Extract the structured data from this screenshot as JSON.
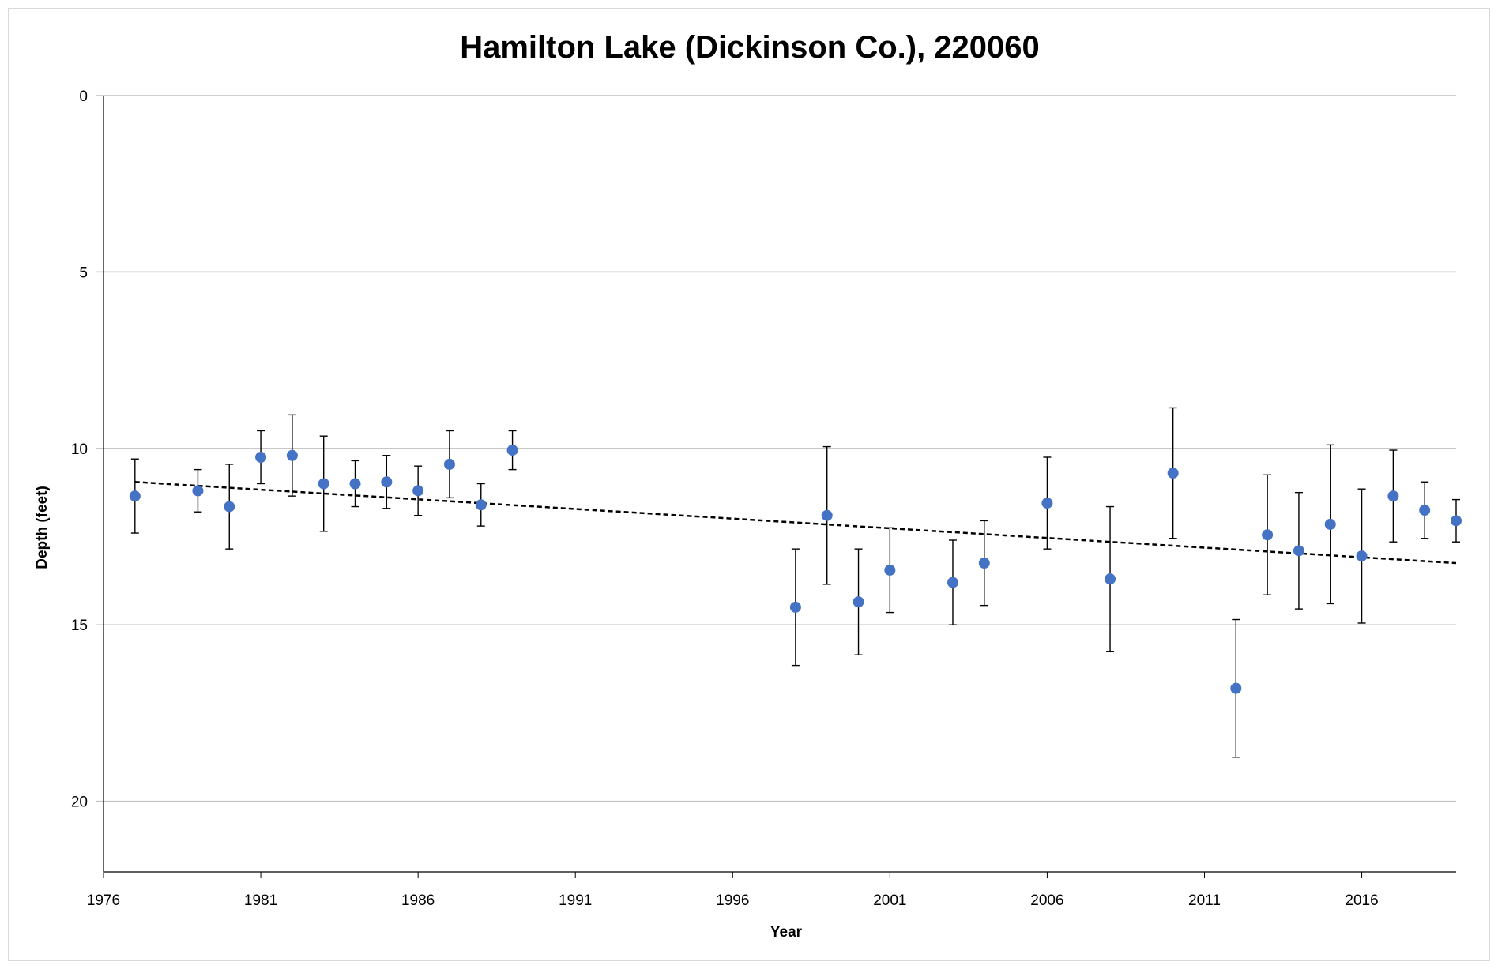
{
  "chart_data": {
    "type": "scatter",
    "title": "Hamilton Lake (Dickinson Co.), 220060",
    "xlabel": "Year",
    "ylabel": "Depth (feet)",
    "xlim": [
      1976,
      2019
    ],
    "ylim": [
      0,
      22
    ],
    "y_inverted": true,
    "xticks": [
      1976,
      1981,
      1986,
      1991,
      1996,
      2001,
      2006,
      2011,
      2016
    ],
    "yticks": [
      0,
      5,
      10,
      15,
      20
    ],
    "grid": "horizontal",
    "legend": "none",
    "marker_color": "#4472C4",
    "errorbar_color": "#000000",
    "trendline": {
      "style": "dashed",
      "color": "#000000",
      "start": [
        1977,
        10.95
      ],
      "end": [
        2019,
        13.25
      ]
    },
    "series": [
      {
        "points": [
          {
            "x": 1977,
            "y": 11.35,
            "err": 1.05
          },
          {
            "x": 1979,
            "y": 11.2,
            "err": 0.6
          },
          {
            "x": 1980,
            "y": 11.65,
            "err": 1.2
          },
          {
            "x": 1981,
            "y": 10.25,
            "err": 0.75
          },
          {
            "x": 1982,
            "y": 10.2,
            "err": 1.15
          },
          {
            "x": 1983,
            "y": 11.0,
            "err": 1.35
          },
          {
            "x": 1984,
            "y": 11.0,
            "err": 0.65
          },
          {
            "x": 1985,
            "y": 10.95,
            "err": 0.75
          },
          {
            "x": 1986,
            "y": 11.2,
            "err": 0.7
          },
          {
            "x": 1987,
            "y": 10.45,
            "err": 0.95
          },
          {
            "x": 1988,
            "y": 11.6,
            "err": 0.6
          },
          {
            "x": 1989,
            "y": 10.05,
            "err": 0.55
          },
          {
            "x": 1998,
            "y": 14.5,
            "err": 1.65
          },
          {
            "x": 1999,
            "y": 11.9,
            "err": 1.95
          },
          {
            "x": 2000,
            "y": 14.35,
            "err": 1.5
          },
          {
            "x": 2001,
            "y": 13.45,
            "err": 1.2
          },
          {
            "x": 2003,
            "y": 13.8,
            "err": 1.2
          },
          {
            "x": 2004,
            "y": 13.25,
            "err": 1.2
          },
          {
            "x": 2006,
            "y": 11.55,
            "err": 1.3
          },
          {
            "x": 2008,
            "y": 13.7,
            "err": 2.05
          },
          {
            "x": 2010,
            "y": 10.7,
            "err": 1.85
          },
          {
            "x": 2012,
            "y": 16.8,
            "err": 1.95
          },
          {
            "x": 2013,
            "y": 12.45,
            "err": 1.7
          },
          {
            "x": 2014,
            "y": 12.9,
            "err": 1.65
          },
          {
            "x": 2015,
            "y": 12.15,
            "err": 2.25
          },
          {
            "x": 2016,
            "y": 13.05,
            "err": 1.9
          },
          {
            "x": 2017,
            "y": 11.35,
            "err": 1.3
          },
          {
            "x": 2018,
            "y": 11.75,
            "err": 0.8
          },
          {
            "x": 2019,
            "y": 12.05,
            "err": 0.6
          }
        ]
      }
    ]
  }
}
